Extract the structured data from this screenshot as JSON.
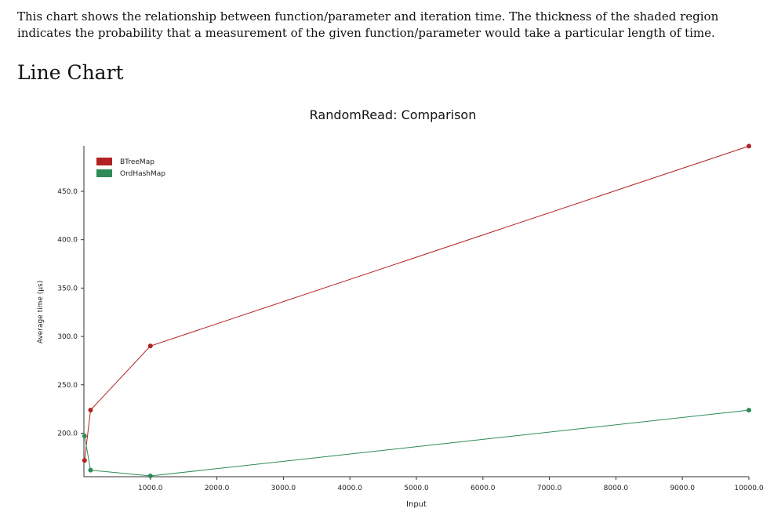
{
  "intro_text": "This chart shows the relationship between function/parameter and iteration time. The thickness of the shaded region indicates the probability that a measurement of the given function/parameter would take a particular length of time.",
  "section_title": "Line Chart",
  "chart_data": {
    "type": "line",
    "title": "RandomRead: Comparison",
    "xlabel": "Input",
    "ylabel": "Average time (µs)",
    "xlim": [
      0,
      10000
    ],
    "ylim": [
      155,
      497
    ],
    "x_ticks": [
      1000,
      2000,
      3000,
      4000,
      5000,
      6000,
      7000,
      8000,
      9000,
      10000
    ],
    "x_tick_labels": [
      "1000.0",
      "2000.0",
      "3000.0",
      "4000.0",
      "5000.0",
      "6000.0",
      "7000.0",
      "8000.0",
      "9000.0",
      "10000.0"
    ],
    "y_ticks": [
      200,
      250,
      300,
      350,
      400,
      450
    ],
    "y_tick_labels": [
      "200.0",
      "250.0",
      "300.0",
      "350.0",
      "400.0",
      "450.0"
    ],
    "legend_position": "top-left",
    "grid": false,
    "series": [
      {
        "name": "BTreeMap",
        "color": "#b22222",
        "points": [
          [
            10,
            171.8
          ],
          [
            100,
            223.9
          ],
          [
            1000,
            290.1
          ],
          [
            10000,
            496.7
          ]
        ]
      },
      {
        "name": "OrdHashMap",
        "color": "#2e8b57",
        "points": [
          [
            10,
            197.1
          ],
          [
            100,
            161.8
          ],
          [
            1000,
            155.8
          ],
          [
            10000,
            223.8
          ]
        ]
      }
    ]
  }
}
